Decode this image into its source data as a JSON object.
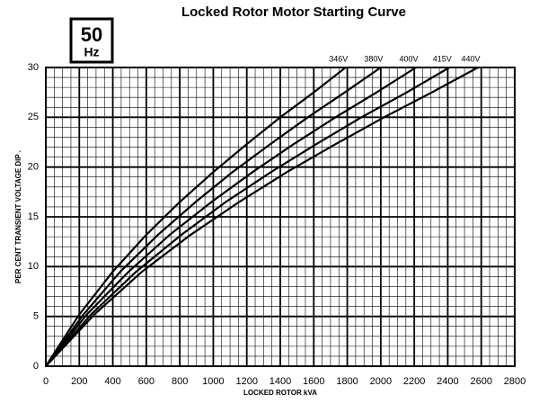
{
  "chart_data": {
    "type": "line",
    "title": "Locked Rotor Motor Starting Curve",
    "badge": {
      "number": "50",
      "unit": "Hz"
    },
    "x_label": "LOCKED ROTOR kVA",
    "y_label": "PER CENT TRANSIENT VOLTAGE DIP .",
    "xlim": [
      0,
      2800
    ],
    "xticks": [
      0,
      200,
      400,
      600,
      800,
      1000,
      1200,
      1400,
      1600,
      1800,
      2000,
      2200,
      2400,
      2600,
      2800
    ],
    "ylim": [
      0,
      30
    ],
    "yticks": [
      0,
      5,
      10,
      15,
      20,
      25,
      30
    ],
    "grid": true,
    "minor_grid": {
      "x": 50,
      "y": 1
    },
    "series": [
      {
        "name": "346V",
        "color": "#000000",
        "x": [
          0,
          200,
          400,
          600,
          800,
          1000,
          1200,
          1400,
          1600,
          1790
        ],
        "values": [
          0,
          5.2,
          9.5,
          13.2,
          16.5,
          19.5,
          22.3,
          25,
          27.5,
          30
        ]
      },
      {
        "name": "380V",
        "color": "#000000",
        "x": [
          0,
          225,
          445,
          670,
          895,
          1115,
          1340,
          1565,
          1785,
          2000
        ],
        "values": [
          0,
          5.2,
          9.5,
          13.2,
          16.5,
          19.5,
          22.3,
          25,
          27.5,
          30
        ]
      },
      {
        "name": "400V",
        "color": "#000000",
        "x": [
          0,
          245,
          495,
          740,
          990,
          1235,
          1480,
          1730,
          1975,
          2210
        ],
        "values": [
          0,
          5.2,
          9.5,
          13.2,
          16.5,
          19.5,
          22.3,
          25,
          27.5,
          30
        ]
      },
      {
        "name": "415V",
        "color": "#000000",
        "x": [
          0,
          270,
          540,
          810,
          1075,
          1345,
          1615,
          1885,
          2155,
          2410
        ],
        "values": [
          0,
          5.2,
          9.5,
          13.2,
          16.5,
          19.5,
          22.3,
          25,
          27.5,
          30
        ]
      },
      {
        "name": "440V",
        "color": "#000000",
        "x": [
          0,
          290,
          575,
          865,
          1155,
          1440,
          1730,
          2020,
          2305,
          2580
        ],
        "values": [
          0,
          5.2,
          9.5,
          13.2,
          16.5,
          19.5,
          22.3,
          25,
          27.5,
          30
        ]
      }
    ]
  }
}
